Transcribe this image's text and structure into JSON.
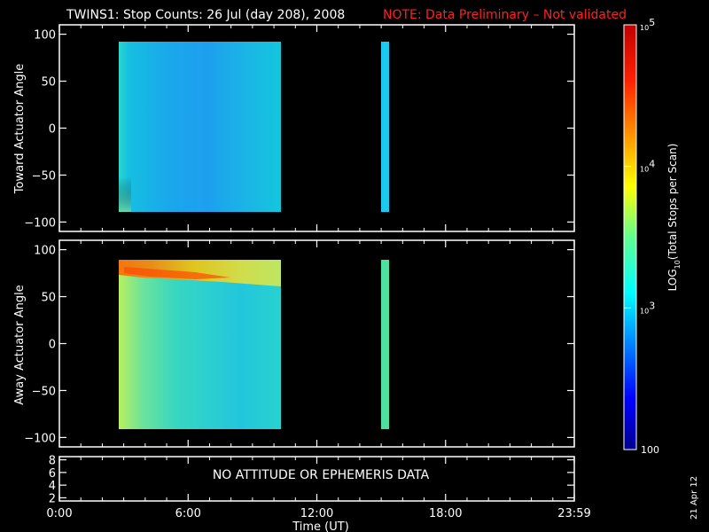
{
  "title": "TWINS1: Stop Counts: 26 Jul (day 208), 2008",
  "note": "NOTE: Data Preliminary – Not validated",
  "stamp_date": "21 Apr 12",
  "xlabel": "Time (UT)",
  "xticks": [
    "0:00",
    "6:00",
    "12:00",
    "18:00",
    "23:59"
  ],
  "colors": {
    "background": "#000000",
    "axes": "#ffffff",
    "note": "#ff2020"
  },
  "chart_data": [
    {
      "type": "heatmap",
      "panel": "toward",
      "ylabel": "Toward Actuator Angle",
      "ylim": [
        -110,
        110
      ],
      "yticks": [
        100,
        50,
        0,
        -50,
        -100
      ],
      "xlim_hours": [
        0,
        24
      ],
      "data_blocks": [
        {
          "t_start": "2:20",
          "t_end": "10:05",
          "angle_min": -90,
          "angle_max": 90,
          "typical_log10_counts": 3.0,
          "note": "slight increase near low-angle edge"
        },
        {
          "t_start": "14:40",
          "t_end": "15:05",
          "angle_min": -90,
          "angle_max": 90,
          "typical_log10_counts": 3.2
        }
      ]
    },
    {
      "type": "heatmap",
      "panel": "away",
      "ylabel": "Away Actuator Angle",
      "ylim": [
        -110,
        110
      ],
      "yticks": [
        100,
        50,
        0,
        -50,
        -100
      ],
      "xlim_hours": [
        0,
        24
      ],
      "data_blocks": [
        {
          "t_start": "2:20",
          "t_end": "10:05",
          "angle_min": -90,
          "angle_max": 90,
          "typical_log10_counts": 3.4,
          "peak_band_angle": 78,
          "peak_log10_counts": 4.6
        },
        {
          "t_start": "14:40",
          "t_end": "15:05",
          "angle_min": -90,
          "angle_max": 90,
          "typical_log10_counts": 3.6
        }
      ]
    },
    {
      "type": "line",
      "panel": "attitude",
      "ylim": [
        1.5,
        8.5
      ],
      "yticks": [
        8,
        6,
        4,
        2
      ],
      "message": "NO ATTITUDE OR EPHEMERIS DATA"
    }
  ],
  "colorbar": {
    "label": "LOG10(Total Stops per Scan)",
    "label_main": "LOG",
    "label_sub": "10",
    "label_rest": "(Total Stops per Scan)",
    "min_label": "100",
    "scale": "log",
    "range": [
      100,
      100000
    ],
    "ticks": [
      {
        "base": "10",
        "exp": "5",
        "value": 100000
      },
      {
        "base": "10",
        "exp": "4",
        "value": 10000
      },
      {
        "base": "10",
        "exp": "3",
        "value": 1000
      }
    ]
  }
}
